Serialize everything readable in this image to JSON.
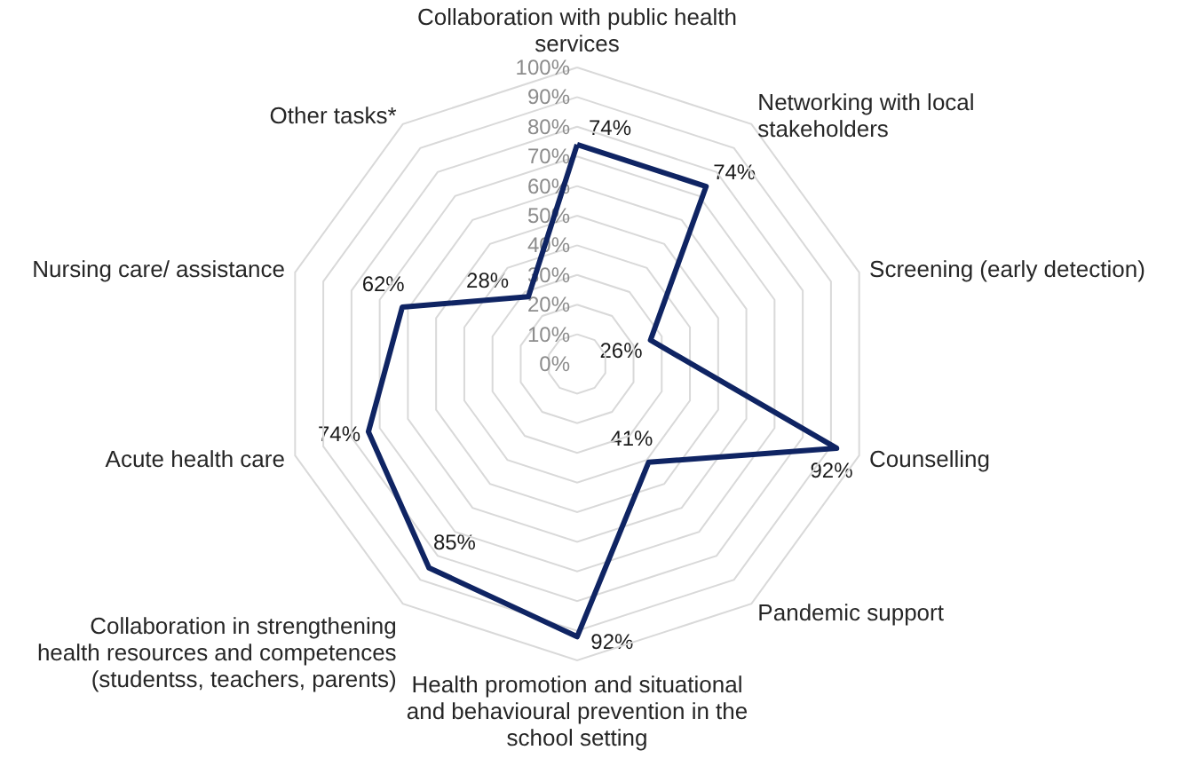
{
  "chart_data": {
    "type": "radar",
    "categories": [
      "Collaboration with public health services",
      "Networking with local stakeholders",
      "Screening (early detection)",
      "Counselling",
      "Pandemic support",
      "Health promotion and situational and behavioural prevention in the school setting",
      "Collaboration in strengthening health resources and competences (studentss, teachers, parents)",
      "Acute health care",
      "Nursing care/ assistance",
      "Other tasks*"
    ],
    "series": [
      {
        "color": "#0f2463",
        "values": [
          74,
          74,
          26,
          92,
          41,
          92,
          85,
          74,
          62,
          28
        ],
        "value_labels": [
          "74%",
          "74%",
          "26%",
          "92%",
          "41%",
          "92%",
          "85%",
          "74%",
          "62%",
          "28%"
        ]
      }
    ],
    "ylim": [
      0,
      100
    ],
    "yticks": [
      {
        "value": 0,
        "label": "0%"
      },
      {
        "value": 10,
        "label": "10%"
      },
      {
        "value": 20,
        "label": "20%"
      },
      {
        "value": 30,
        "label": "30%"
      },
      {
        "value": 40,
        "label": "40%"
      },
      {
        "value": 50,
        "label": "50%"
      },
      {
        "value": 60,
        "label": "60%"
      },
      {
        "value": 70,
        "label": "70%"
      },
      {
        "value": 80,
        "label": "80%"
      },
      {
        "value": 90,
        "label": "90%"
      },
      {
        "value": 100,
        "label": "100%"
      }
    ],
    "grid": true,
    "marker": "none",
    "line_style": "solid"
  }
}
